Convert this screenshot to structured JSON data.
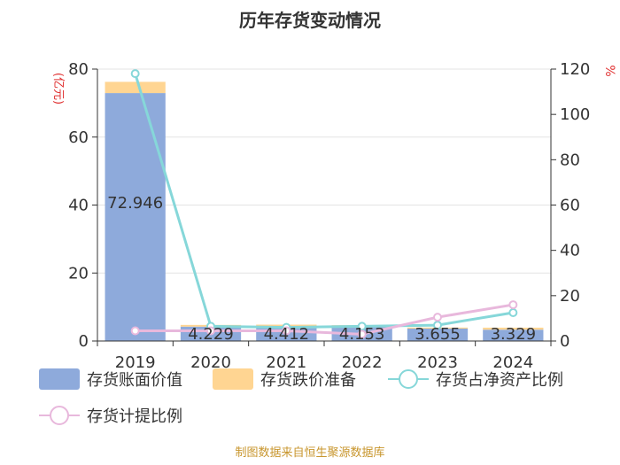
{
  "chart_data": {
    "type": "bar",
    "title": "历年存货变动情况",
    "categories": [
      "2019",
      "2020",
      "2021",
      "2022",
      "2023",
      "2024"
    ],
    "y_left": {
      "unit_label": "(亿元)",
      "min": 0,
      "max": 80,
      "ticks": [
        0,
        20,
        40,
        60,
        80
      ]
    },
    "y_right": {
      "unit_label": "%",
      "min": 0,
      "max": 120,
      "ticks": [
        0,
        20,
        40,
        60,
        80,
        100,
        120
      ]
    },
    "series": [
      {
        "name": "存货账面价值",
        "kind": "bar",
        "axis": "left",
        "color": "#8eaadb",
        "values": [
          72.946,
          4.229,
          4.412,
          4.153,
          3.655,
          3.329
        ],
        "labels": [
          "72.946",
          "4.229",
          "4.412",
          "4.153",
          "3.655",
          "3.329"
        ]
      },
      {
        "name": "存货跌价准备",
        "kind": "bar-stacked",
        "axis": "left",
        "color": "#ffd592",
        "values": [
          3.3,
          0.5,
          0.4,
          0.5,
          0.3,
          0.6
        ]
      },
      {
        "name": "存货占净资产比例",
        "kind": "line",
        "axis": "right",
        "color": "#86d7d9",
        "values": [
          118,
          6.5,
          6.0,
          6.5,
          7.0,
          12.5
        ]
      },
      {
        "name": "存货计提比例",
        "kind": "line",
        "axis": "right",
        "color": "#e8b8dc",
        "values": [
          4.5,
          4.5,
          4.5,
          3.0,
          10.5,
          16.0
        ]
      }
    ],
    "legend_position": "bottom",
    "grid": true
  },
  "footer": {
    "source": "制图数据来自恒生聚源数据库"
  }
}
